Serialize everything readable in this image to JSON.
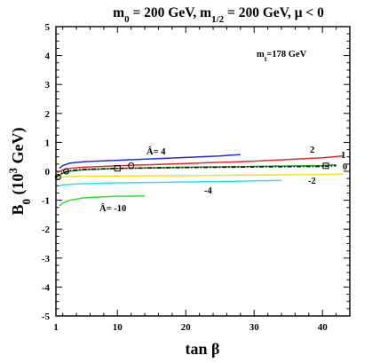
{
  "chart_data": {
    "type": "line",
    "title_parts": [
      "m",
      "0",
      " = 200 GeV, m",
      "1/2",
      " = 200 GeV, μ < 0"
    ],
    "xlabel": "tan β",
    "ylabel_parts": [
      "B",
      "0",
      " (10",
      "3",
      " GeV)"
    ],
    "xlim": [
      1,
      44
    ],
    "ylim": [
      -5,
      5
    ],
    "xticks": [
      1,
      10,
      20,
      30,
      40
    ],
    "yticks": [
      -5,
      -4,
      -3,
      -2,
      -1,
      0,
      1,
      2,
      3,
      4,
      5
    ],
    "grid": false,
    "annotation_parts": [
      "m",
      "t",
      "=178 GeV"
    ],
    "series": [
      {
        "label": "Â= 4",
        "color": "#2a2ad8",
        "x": [
          1.5,
          2,
          3,
          5,
          10,
          15,
          20,
          25,
          28
        ],
        "y": [
          0.1,
          0.2,
          0.28,
          0.33,
          0.38,
          0.43,
          0.48,
          0.53,
          0.58
        ]
      },
      {
        "label": "2",
        "color": "#e02a2a",
        "x": [
          1.2,
          2,
          3,
          5,
          10,
          20,
          30,
          40,
          43
        ],
        "y": [
          -0.05,
          0.05,
          0.1,
          0.14,
          0.19,
          0.27,
          0.35,
          0.47,
          0.53
        ]
      },
      {
        "label": "1",
        "color": "#2aa02a",
        "x": [
          1,
          2,
          3,
          5,
          10,
          20,
          30,
          40,
          42
        ],
        "y": [
          -0.2,
          -0.07,
          0.0,
          0.05,
          0.1,
          0.14,
          0.17,
          0.2,
          0.22
        ]
      },
      {
        "label": "0",
        "color": "#000000",
        "x": [
          1,
          2,
          3,
          5,
          10,
          20,
          30,
          40,
          42
        ],
        "y": [
          -0.2,
          -0.05,
          0.02,
          0.06,
          0.1,
          0.13,
          0.15,
          0.17,
          0.19
        ]
      },
      {
        "label": "-2",
        "color": "#f0e020",
        "x": [
          1.2,
          2,
          3,
          5,
          10,
          20,
          30,
          40,
          43
        ],
        "y": [
          -0.25,
          -0.2,
          -0.18,
          -0.17,
          -0.16,
          -0.15,
          -0.13,
          -0.11,
          -0.1
        ]
      },
      {
        "label": "-4",
        "color": "#30e0f0",
        "x": [
          1.5,
          2,
          3,
          5,
          10,
          20,
          30,
          34
        ],
        "y": [
          -0.5,
          -0.47,
          -0.45,
          -0.43,
          -0.4,
          -0.37,
          -0.33,
          -0.32
        ]
      },
      {
        "label": "Â= -10",
        "color": "#30e030",
        "x": [
          1.5,
          2,
          3,
          5,
          8,
          10,
          12,
          14
        ],
        "y": [
          -1.2,
          -1.1,
          -1.0,
          -0.92,
          -0.88,
          -0.86,
          -0.86,
          -0.85
        ]
      }
    ],
    "markers": [
      {
        "shape": "circle",
        "x": 1.3,
        "y": -0.2
      },
      {
        "shape": "circle",
        "x": 2.5,
        "y": 0.0
      },
      {
        "shape": "circle",
        "x": 12,
        "y": 0.2
      },
      {
        "shape": "square",
        "x": 10,
        "y": 0.1
      },
      {
        "shape": "square",
        "x": 40.5,
        "y": 0.19
      }
    ]
  }
}
